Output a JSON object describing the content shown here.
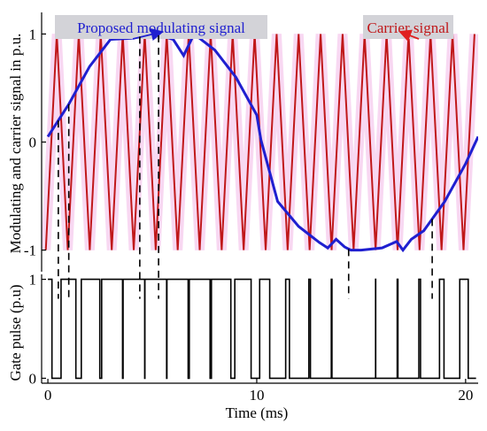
{
  "chart_data": [
    {
      "type": "line",
      "panel": "top",
      "ylabel": "Modulating and carrier signal in p.u.",
      "xlim": [
        -0.3,
        20.6
      ],
      "ylim": [
        -1.2,
        1.2
      ],
      "yticks": [
        {
          "value": 1,
          "label": "1"
        },
        {
          "value": 0,
          "label": "0"
        },
        {
          "value": -1,
          "label": "-1"
        }
      ],
      "series": [
        {
          "name": "Carrier signal",
          "style": "triangular",
          "frequency_khz": 0.95,
          "amplitude": 1,
          "x_start": -0.1,
          "x_end": 20.5,
          "color": "#c0181a"
        },
        {
          "name": "Proposed modulating signal",
          "color": "#1f1fd0",
          "x": [
            0,
            1,
            2,
            3,
            4,
            5,
            5.5,
            6,
            6.5,
            7,
            8,
            9,
            10,
            10.2,
            11,
            12,
            13,
            13.4,
            13.8,
            14.2,
            14.5,
            15,
            16,
            16.7,
            17,
            17.4,
            18,
            19,
            20,
            20.6
          ],
          "y": [
            0.05,
            0.35,
            0.7,
            0.95,
            0.96,
            1.0,
            0.98,
            0.95,
            0.8,
            1.0,
            0.85,
            0.6,
            0.25,
            0.02,
            -0.55,
            -0.78,
            -0.93,
            -0.98,
            -0.9,
            -0.97,
            -1.0,
            -1.0,
            -0.98,
            -0.92,
            -1.0,
            -0.9,
            -0.82,
            -0.55,
            -0.2,
            0.05
          ]
        }
      ],
      "annotations": [
        {
          "text": "Proposed modulating signal",
          "color": "#1f1fd0",
          "points_to": {
            "x": 5.4,
            "y": 1.0
          }
        },
        {
          "text": "Carrier signal",
          "color": "#c0181a",
          "points_to": {
            "x": 16.8,
            "y": 1.0
          }
        }
      ],
      "dashed_markers_x": [
        0.5,
        1.0,
        4.4,
        5.3,
        14.4,
        18.4
      ]
    },
    {
      "type": "line",
      "panel": "bottom",
      "xlabel": "Time (ms)",
      "ylabel": "Gate pulse (p.u)",
      "xlim": [
        -0.3,
        20.6
      ],
      "ylim": [
        -0.05,
        1.05
      ],
      "xticks": [
        {
          "value": 0,
          "label": "0"
        },
        {
          "value": 10,
          "label": "10"
        },
        {
          "value": 20,
          "label": "20"
        }
      ],
      "yticks": [
        {
          "value": 1,
          "label": "1"
        },
        {
          "value": 0,
          "label": "0"
        }
      ],
      "series": [
        {
          "name": "Gate pulse",
          "style": "step",
          "color": "#000000",
          "rule": "1 when modulating signal > carrier signal, else 0"
        }
      ]
    }
  ]
}
